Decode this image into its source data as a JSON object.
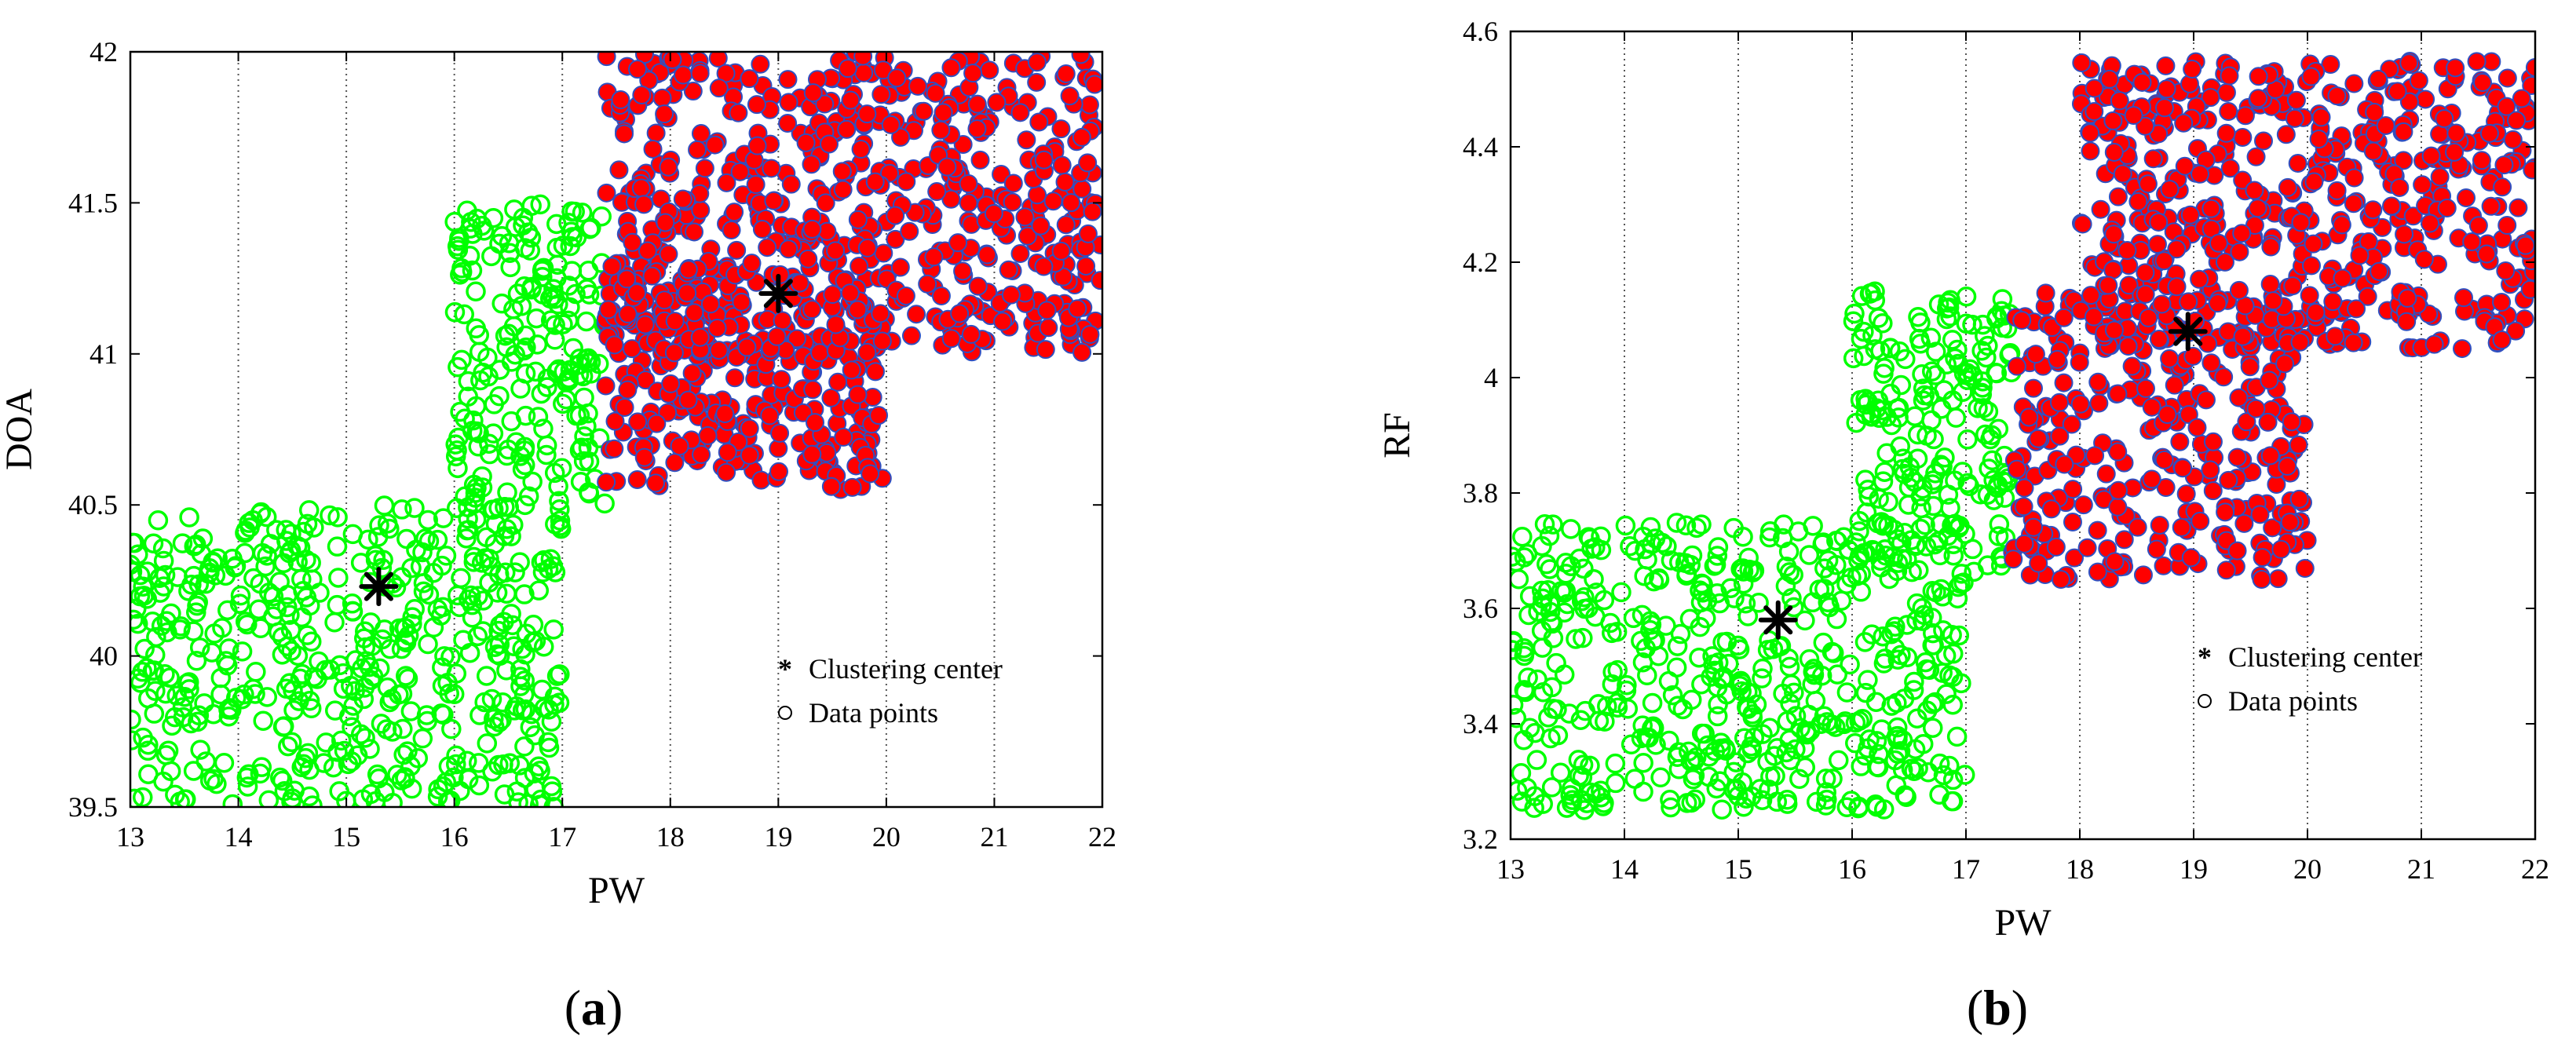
{
  "chart_data": [
    {
      "type": "scatter",
      "title": "",
      "xlabel": "PW",
      "ylabel": "DOA",
      "xlim": [
        13,
        22
      ],
      "ylim": [
        39.5,
        42
      ],
      "xticks": [
        "13",
        "14",
        "15",
        "16",
        "17",
        "18",
        "19",
        "20",
        "21",
        "22"
      ],
      "yticks": [
        "39.5",
        "40",
        "40.5",
        "41",
        "41.5",
        "42"
      ],
      "grid": "x-dotted",
      "legend": {
        "position": "lower-right",
        "entries": [
          "Clustering center",
          "Data points"
        ]
      },
      "caption_letter": "a",
      "colors": {
        "cluster1": "#00ff00",
        "cluster2": "#ff0000",
        "marker_edge": "#3050c0",
        "center": "#000000"
      },
      "clusters": [
        {
          "color": "green",
          "center": [
            15.3,
            40.23
          ],
          "regions": [
            {
              "x": [
                13.0,
                17.0
              ],
              "y": [
                39.5,
                40.5
              ],
              "points": 520
            },
            {
              "x": [
                16.0,
                17.4
              ],
              "y": [
                40.5,
                41.5
              ],
              "points": 200
            }
          ]
        },
        {
          "color": "red",
          "center": [
            19.0,
            41.2
          ],
          "regions": [
            {
              "x": [
                17.4,
                20.0
              ],
              "y": [
                40.55,
                41.3
              ],
              "points": 300
            },
            {
              "x": [
                17.4,
                22.0
              ],
              "y": [
                41.0,
                42.0
              ],
              "points": 620
            }
          ]
        }
      ]
    },
    {
      "type": "scatter",
      "title": "",
      "xlabel": "PW",
      "ylabel": "RF",
      "xlim": [
        13,
        22
      ],
      "ylim": [
        3.2,
        4.6
      ],
      "xticks": [
        "13",
        "14",
        "15",
        "16",
        "17",
        "18",
        "19",
        "20",
        "21",
        "22"
      ],
      "yticks": [
        "3.2",
        "3.4",
        "3.6",
        "3.8",
        "4",
        "4.2",
        "4.4",
        "4.6"
      ],
      "grid": "x-dotted",
      "legend": {
        "position": "lower-right",
        "entries": [
          "Clustering center",
          "Data points"
        ]
      },
      "caption_letter": "b",
      "colors": {
        "cluster1": "#00ff00",
        "cluster2": "#ff0000",
        "marker_edge": "#3050c0",
        "center": "#000000"
      },
      "clusters": [
        {
          "color": "green",
          "center": [
            15.35,
            3.58
          ],
          "regions": [
            {
              "x": [
                13.0,
                17.0
              ],
              "y": [
                3.25,
                3.75
              ],
              "points": 520
            },
            {
              "x": [
                16.0,
                17.4
              ],
              "y": [
                3.65,
                4.15
              ],
              "points": 200
            }
          ]
        },
        {
          "color": "red",
          "center": [
            18.95,
            4.08
          ],
          "regions": [
            {
              "x": [
                17.4,
                20.0
              ],
              "y": [
                3.65,
                4.15
              ],
              "points": 320
            },
            {
              "x": [
                18.0,
                22.0
              ],
              "y": [
                4.05,
                4.55
              ],
              "points": 560
            }
          ]
        }
      ]
    }
  ]
}
